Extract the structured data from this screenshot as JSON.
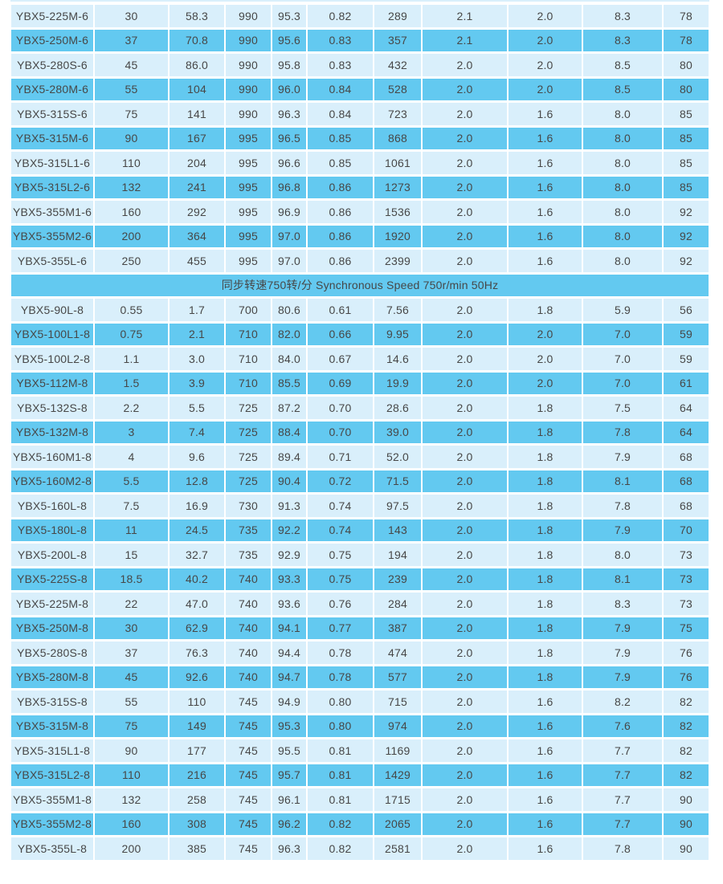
{
  "colors": {
    "row_light": "#d9effb",
    "row_dark": "#63c9f0",
    "text": "#474747",
    "background": "#ffffff"
  },
  "table": {
    "divider_label": "同步转速750转/分 Synchronous Speed 750r/min 50Hz",
    "section_6pole_rows": [
      [
        "YBX5-225M-6",
        "30",
        "58.3",
        "990",
        "95.3",
        "0.82",
        "289",
        "2.1",
        "2.0",
        "8.3",
        "78"
      ],
      [
        "YBX5-250M-6",
        "37",
        "70.8",
        "990",
        "95.6",
        "0.83",
        "357",
        "2.1",
        "2.0",
        "8.3",
        "78"
      ],
      [
        "YBX5-280S-6",
        "45",
        "86.0",
        "990",
        "95.8",
        "0.83",
        "432",
        "2.0",
        "2.0",
        "8.5",
        "80"
      ],
      [
        "YBX5-280M-6",
        "55",
        "104",
        "990",
        "96.0",
        "0.84",
        "528",
        "2.0",
        "2.0",
        "8.5",
        "80"
      ],
      [
        "YBX5-315S-6",
        "75",
        "141",
        "990",
        "96.3",
        "0.84",
        "723",
        "2.0",
        "1.6",
        "8.0",
        "85"
      ],
      [
        "YBX5-315M-6",
        "90",
        "167",
        "995",
        "96.5",
        "0.85",
        "868",
        "2.0",
        "1.6",
        "8.0",
        "85"
      ],
      [
        "YBX5-315L1-6",
        "110",
        "204",
        "995",
        "96.6",
        "0.85",
        "1061",
        "2.0",
        "1.6",
        "8.0",
        "85"
      ],
      [
        "YBX5-315L2-6",
        "132",
        "241",
        "995",
        "96.8",
        "0.86",
        "1273",
        "2.0",
        "1.6",
        "8.0",
        "85"
      ],
      [
        "YBX5-355M1-6",
        "160",
        "292",
        "995",
        "96.9",
        "0.86",
        "1536",
        "2.0",
        "1.6",
        "8.0",
        "92"
      ],
      [
        "YBX5-355M2-6",
        "200",
        "364",
        "995",
        "97.0",
        "0.86",
        "1920",
        "2.0",
        "1.6",
        "8.0",
        "92"
      ],
      [
        "YBX5-355L-6",
        "250",
        "455",
        "995",
        "97.0",
        "0.86",
        "2399",
        "2.0",
        "1.6",
        "8.0",
        "92"
      ]
    ],
    "section_8pole_rows": [
      [
        "YBX5-90L-8",
        "0.55",
        "1.7",
        "700",
        "80.6",
        "0.61",
        "7.56",
        "2.0",
        "1.8",
        "5.9",
        "56"
      ],
      [
        "YBX5-100L1-8",
        "0.75",
        "2.1",
        "710",
        "82.0",
        "0.66",
        "9.95",
        "2.0",
        "2.0",
        "7.0",
        "59"
      ],
      [
        "YBX5-100L2-8",
        "1.1",
        "3.0",
        "710",
        "84.0",
        "0.67",
        "14.6",
        "2.0",
        "2.0",
        "7.0",
        "59"
      ],
      [
        "YBX5-112M-8",
        "1.5",
        "3.9",
        "710",
        "85.5",
        "0.69",
        "19.9",
        "2.0",
        "2.0",
        "7.0",
        "61"
      ],
      [
        "YBX5-132S-8",
        "2.2",
        "5.5",
        "725",
        "87.2",
        "0.70",
        "28.6",
        "2.0",
        "1.8",
        "7.5",
        "64"
      ],
      [
        "YBX5-132M-8",
        "3",
        "7.4",
        "725",
        "88.4",
        "0.70",
        "39.0",
        "2.0",
        "1.8",
        "7.8",
        "64"
      ],
      [
        "YBX5-160M1-8",
        "4",
        "9.6",
        "725",
        "89.4",
        "0.71",
        "52.0",
        "2.0",
        "1.8",
        "7.9",
        "68"
      ],
      [
        "YBX5-160M2-8",
        "5.5",
        "12.8",
        "725",
        "90.4",
        "0.72",
        "71.5",
        "2.0",
        "1.8",
        "8.1",
        "68"
      ],
      [
        "YBX5-160L-8",
        "7.5",
        "16.9",
        "730",
        "91.3",
        "0.74",
        "97.5",
        "2.0",
        "1.8",
        "7.8",
        "68"
      ],
      [
        "YBX5-180L-8",
        "11",
        "24.5",
        "735",
        "92.2",
        "0.74",
        "143",
        "2.0",
        "1.8",
        "7.9",
        "70"
      ],
      [
        "YBX5-200L-8",
        "15",
        "32.7",
        "735",
        "92.9",
        "0.75",
        "194",
        "2.0",
        "1.8",
        "8.0",
        "73"
      ],
      [
        "YBX5-225S-8",
        "18.5",
        "40.2",
        "740",
        "93.3",
        "0.75",
        "239",
        "2.0",
        "1.8",
        "8.1",
        "73"
      ],
      [
        "YBX5-225M-8",
        "22",
        "47.0",
        "740",
        "93.6",
        "0.76",
        "284",
        "2.0",
        "1.8",
        "8.3",
        "73"
      ],
      [
        "YBX5-250M-8",
        "30",
        "62.9",
        "740",
        "94.1",
        "0.77",
        "387",
        "2.0",
        "1.8",
        "7.9",
        "75"
      ],
      [
        "YBX5-280S-8",
        "37",
        "76.3",
        "740",
        "94.4",
        "0.78",
        "474",
        "2.0",
        "1.8",
        "7.9",
        "76"
      ],
      [
        "YBX5-280M-8",
        "45",
        "92.6",
        "740",
        "94.7",
        "0.78",
        "577",
        "2.0",
        "1.8",
        "7.9",
        "76"
      ],
      [
        "YBX5-315S-8",
        "55",
        "110",
        "745",
        "94.9",
        "0.80",
        "715",
        "2.0",
        "1.6",
        "8.2",
        "82"
      ],
      [
        "YBX5-315M-8",
        "75",
        "149",
        "745",
        "95.3",
        "0.80",
        "974",
        "2.0",
        "1.6",
        "7.6",
        "82"
      ],
      [
        "YBX5-315L1-8",
        "90",
        "177",
        "745",
        "95.5",
        "0.81",
        "1169",
        "2.0",
        "1.6",
        "7.7",
        "82"
      ],
      [
        "YBX5-315L2-8",
        "110",
        "216",
        "745",
        "95.7",
        "0.81",
        "1429",
        "2.0",
        "1.6",
        "7.7",
        "82"
      ],
      [
        "YBX5-355M1-8",
        "132",
        "258",
        "745",
        "96.1",
        "0.81",
        "1715",
        "2.0",
        "1.6",
        "7.7",
        "90"
      ],
      [
        "YBX5-355M2-8",
        "160",
        "308",
        "745",
        "96.2",
        "0.82",
        "2065",
        "2.0",
        "1.6",
        "7.7",
        "90"
      ],
      [
        "YBX5-355L-8",
        "200",
        "385",
        "745",
        "96.3",
        "0.82",
        "2581",
        "2.0",
        "1.6",
        "7.8",
        "90"
      ]
    ]
  }
}
